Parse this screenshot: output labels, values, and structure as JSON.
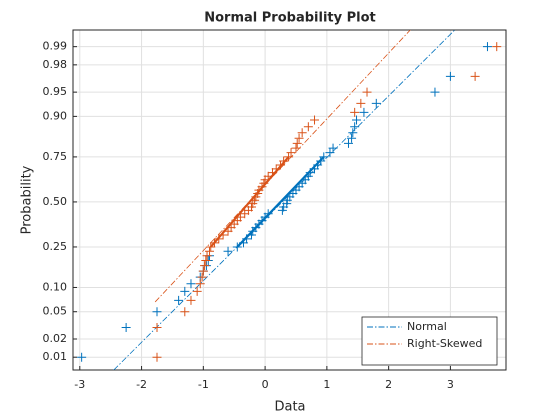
{
  "chart_data": {
    "type": "normplot",
    "title": "Normal Probability Plot",
    "xlabel": "Data",
    "ylabel": "Probability",
    "xlim": [
      -3.11,
      3.9
    ],
    "ylim": [
      0.0059,
      0.995
    ],
    "yscale": "probit",
    "xticks": [
      -3,
      -2,
      -1,
      0,
      1,
      2,
      3
    ],
    "yticks": [
      0.01,
      0.02,
      0.05,
      {
        "value": 0.1,
        "label": "0.10"
      },
      0.25,
      {
        "value": 0.5,
        "label": "0.50"
      },
      0.75,
      {
        "value": 0.9,
        "label": "0.90"
      },
      0.95,
      0.98,
      0.99
    ],
    "grid": true,
    "legend": "southeast",
    "series": [
      {
        "name": "Normal",
        "color": "#0072BD",
        "x": [
          -2.97,
          -2.25,
          -1.75,
          -1.4,
          -1.3,
          -1.2,
          -1.05,
          -1.0,
          -0.95,
          -0.92,
          -0.9,
          -0.6,
          -0.45,
          -0.35,
          -0.3,
          -0.22,
          -0.2,
          -0.15,
          -0.1,
          -0.05,
          0.0,
          0.05,
          0.28,
          0.3,
          0.35,
          0.36,
          0.4,
          0.45,
          0.5,
          0.55,
          0.6,
          0.65,
          0.7,
          0.73,
          0.8,
          0.85,
          0.9,
          0.95,
          1.05,
          1.1,
          1.35,
          1.4,
          1.42,
          1.45,
          1.48,
          1.6,
          1.8,
          2.75,
          3.0,
          3.6
        ],
        "y": [
          0.01,
          0.03,
          0.05,
          0.07,
          0.09,
          0.11,
          0.13,
          0.15,
          0.17,
          0.19,
          0.21,
          0.23,
          0.25,
          0.27,
          0.29,
          0.31,
          0.33,
          0.35,
          0.37,
          0.39,
          0.41,
          0.43,
          0.45,
          0.47,
          0.49,
          0.51,
          0.53,
          0.55,
          0.57,
          0.59,
          0.61,
          0.63,
          0.65,
          0.67,
          0.69,
          0.71,
          0.73,
          0.75,
          0.77,
          0.79,
          0.81,
          0.83,
          0.85,
          0.87,
          0.89,
          0.91,
          0.93,
          0.95,
          0.97,
          0.99
        ],
        "quartile_line": {
          "x": [
            -0.45,
            0.95
          ],
          "y": [
            0.25,
            0.75
          ]
        },
        "ref_line": {
          "x": [
            -2.45,
            3.07
          ],
          "y": [
            0.0059,
            0.995
          ]
        }
      },
      {
        "name": "Right-Skewed",
        "color": "#D95319",
        "x": [
          -1.75,
          -1.75,
          -1.3,
          -1.2,
          -1.1,
          -1.05,
          -1.02,
          -1.0,
          -0.98,
          -0.96,
          -0.94,
          -0.9,
          -0.88,
          -0.82,
          -0.75,
          -0.68,
          -0.6,
          -0.55,
          -0.5,
          -0.45,
          -0.4,
          -0.33,
          -0.27,
          -0.22,
          -0.2,
          -0.17,
          -0.15,
          -0.12,
          -0.1,
          -0.05,
          -0.02,
          0.0,
          0.05,
          0.12,
          0.18,
          0.25,
          0.3,
          0.38,
          0.42,
          0.5,
          0.52,
          0.55,
          0.6,
          0.7,
          0.8,
          1.45,
          1.55,
          1.65,
          3.4,
          3.75
        ],
        "y": [
          0.01,
          0.03,
          0.05,
          0.07,
          0.09,
          0.11,
          0.13,
          0.15,
          0.17,
          0.19,
          0.21,
          0.23,
          0.25,
          0.27,
          0.29,
          0.31,
          0.33,
          0.35,
          0.37,
          0.39,
          0.41,
          0.43,
          0.45,
          0.47,
          0.49,
          0.51,
          0.53,
          0.55,
          0.57,
          0.59,
          0.61,
          0.63,
          0.65,
          0.67,
          0.69,
          0.71,
          0.73,
          0.75,
          0.77,
          0.79,
          0.81,
          0.83,
          0.85,
          0.87,
          0.89,
          0.91,
          0.93,
          0.95,
          0.97,
          0.99
        ],
        "quartile_line": {
          "x": [
            -0.88,
            0.38
          ],
          "y": [
            0.25,
            0.75
          ]
        },
        "ref_line": {
          "x": [
            -1.78,
            2.35
          ],
          "y": [
            0.067,
            0.995
          ]
        }
      }
    ]
  }
}
